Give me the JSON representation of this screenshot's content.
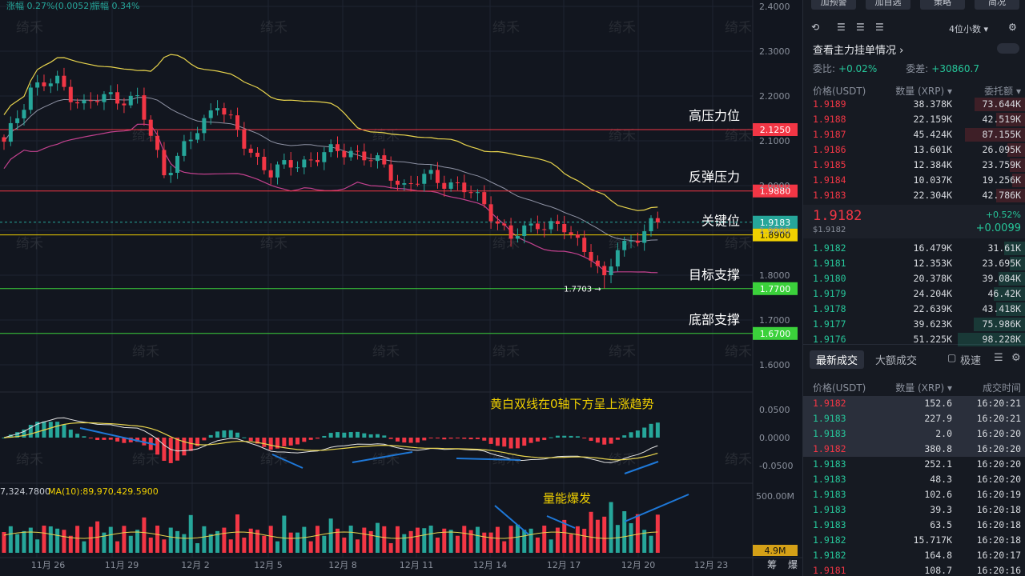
{
  "chart_data": {
    "type": "candlestick",
    "header": {
      "change_label": "涨幅",
      "change_value": "0.27%(0.0052)",
      "amplitude_label": "振幅",
      "amplitude_value": "0.34%"
    },
    "watermark": "绮禾",
    "price_axis": {
      "ylim": [
        1.55,
        2.42
      ],
      "ticks": [
        "2.4000",
        "2.3000",
        "2.2000",
        "2.1000",
        "2.0000",
        "1.9000",
        "1.8000",
        "1.7000",
        "1.6000"
      ]
    },
    "macd_axis": {
      "ticks": [
        "0.0500",
        "0.0000",
        "-0.0500"
      ]
    },
    "volume_axis": {
      "ticks": [
        "500.00M"
      ],
      "current": "4.9M",
      "ma_label": "MA(10):89,970,429.5900",
      "vol_label": "7,324.7800"
    },
    "x_ticks": [
      "11月 26",
      "11月 29",
      "12月 2",
      "12月 5",
      "12月 8",
      "12月 11",
      "12月 14",
      "12月 17",
      "12月 20",
      "12月 23"
    ],
    "x_axis_right": [
      "筹",
      "爆"
    ],
    "levels": [
      {
        "name": "高压力位",
        "value": "2.1250",
        "price": 2.125,
        "color": "#f23645"
      },
      {
        "name": "反弹压力",
        "value": "1.9880",
        "price": 1.988,
        "color": "#f23645"
      },
      {
        "name": "关键位",
        "value": "1.8900",
        "price": 1.89,
        "color": "#f0d000"
      },
      {
        "name": "目标支撑",
        "value": "1.7700",
        "price": 1.77,
        "color": "#3bd13b"
      },
      {
        "name": "底部支撑",
        "value": "1.6700",
        "price": 1.67,
        "color": "#3bd13b"
      }
    ],
    "current_price": {
      "value": "1.9183",
      "price": 1.9183
    },
    "low_marker": {
      "value": "1.7703",
      "price": 1.7703
    },
    "annotations": {
      "macd": "黄白双线在0轴下方呈上涨趋势",
      "volume": "量能爆发"
    },
    "series_keypoints": [
      [
        0,
        2.09
      ],
      [
        4,
        2.22
      ],
      [
        8,
        2.23
      ],
      [
        12,
        2.18
      ],
      [
        16,
        2.2
      ],
      [
        20,
        2.19
      ],
      [
        24,
        2.03
      ],
      [
        28,
        2.1
      ],
      [
        32,
        2.19
      ],
      [
        36,
        2.09
      ],
      [
        40,
        2.03
      ],
      [
        44,
        2.05
      ],
      [
        48,
        2.07
      ],
      [
        52,
        2.08
      ],
      [
        56,
        2.05
      ],
      [
        60,
        2.0
      ],
      [
        64,
        2.02
      ],
      [
        68,
        2.0
      ],
      [
        72,
        1.96
      ],
      [
        76,
        1.88
      ],
      [
        80,
        1.92
      ],
      [
        84,
        1.9
      ],
      [
        88,
        1.85
      ],
      [
        90,
        1.78
      ],
      [
        92,
        1.86
      ],
      [
        96,
        1.9
      ],
      [
        98,
        1.918
      ]
    ]
  },
  "right_panel": {
    "top_buttons": [
      "加预警",
      "加自选",
      "策略",
      "简况"
    ],
    "precision": "4位小数",
    "title": "查看主力挂单情况",
    "ratio_label": "委比:",
    "ratio_value": "+0.02%",
    "diff_label": "委差:",
    "diff_value": "+30860.7",
    "book_headers": [
      "价格(USDT)",
      "数量 (XRP)",
      "委托额"
    ],
    "asks": [
      {
        "price": "1.9189",
        "qty": "38.378K",
        "amt": "73.644K",
        "w": 0.75
      },
      {
        "price": "1.9188",
        "qty": "22.159K",
        "amt": "42.519K",
        "w": 0.43
      },
      {
        "price": "1.9187",
        "qty": "45.424K",
        "amt": "87.155K",
        "w": 0.89
      },
      {
        "price": "1.9186",
        "qty": "13.601K",
        "amt": "26.095K",
        "w": 0.27
      },
      {
        "price": "1.9185",
        "qty": "12.384K",
        "amt": "23.759K",
        "w": 0.24
      },
      {
        "price": "1.9184",
        "qty": "10.037K",
        "amt": "19.256K",
        "w": 0.2
      },
      {
        "price": "1.9183",
        "qty": "22.304K",
        "amt": "42.786K",
        "w": 0.44
      }
    ],
    "last_price": "1.9182",
    "last_usd": "$1.9182",
    "change_pct": "+0.52%",
    "change_abs": "+0.0099",
    "bids": [
      {
        "price": "1.9182",
        "qty": "16.479K",
        "amt": "31.61K",
        "w": 0.32
      },
      {
        "price": "1.9181",
        "qty": "12.353K",
        "amt": "23.695K",
        "w": 0.24
      },
      {
        "price": "1.9180",
        "qty": "20.378K",
        "amt": "39.084K",
        "w": 0.4
      },
      {
        "price": "1.9179",
        "qty": "24.204K",
        "amt": "46.42K",
        "w": 0.47
      },
      {
        "price": "1.9178",
        "qty": "22.639K",
        "amt": "43.418K",
        "w": 0.44
      },
      {
        "price": "1.9177",
        "qty": "39.623K",
        "amt": "75.986K",
        "w": 0.77
      },
      {
        "price": "1.9176",
        "qty": "51.225K",
        "amt": "98.228K",
        "w": 1.0
      }
    ],
    "trade_tabs": [
      "最新成交",
      "大额成交"
    ],
    "trade_mode": "极速",
    "trade_headers": [
      "价格(USDT)",
      "数量 (XRP)",
      "成交时间"
    ],
    "trades": [
      {
        "price": "1.9182",
        "qty": "152.6",
        "time": "16:20:21",
        "side": "sell",
        "hl": true
      },
      {
        "price": "1.9183",
        "qty": "227.9",
        "time": "16:20:21",
        "side": "buy",
        "hl": true
      },
      {
        "price": "1.9183",
        "qty": "2.0",
        "time": "16:20:20",
        "side": "buy",
        "hl": true
      },
      {
        "price": "1.9182",
        "qty": "380.8",
        "time": "16:20:20",
        "side": "sell",
        "hl": true
      },
      {
        "price": "1.9183",
        "qty": "252.1",
        "time": "16:20:20",
        "side": "buy",
        "hl": false
      },
      {
        "price": "1.9183",
        "qty": "48.3",
        "time": "16:20:20",
        "side": "buy",
        "hl": false
      },
      {
        "price": "1.9183",
        "qty": "102.6",
        "time": "16:20:19",
        "side": "buy",
        "hl": false
      },
      {
        "price": "1.9183",
        "qty": "39.3",
        "time": "16:20:18",
        "side": "buy",
        "hl": false
      },
      {
        "price": "1.9183",
        "qty": "63.5",
        "time": "16:20:18",
        "side": "buy",
        "hl": false
      },
      {
        "price": "1.9182",
        "qty": "15.717K",
        "time": "16:20:18",
        "side": "buy",
        "hl": false
      },
      {
        "price": "1.9182",
        "qty": "164.8",
        "time": "16:20:17",
        "side": "buy",
        "hl": false
      },
      {
        "price": "1.9181",
        "qty": "108.7",
        "time": "16:20:16",
        "side": "sell",
        "hl": false
      }
    ],
    "colors": {
      "up": "#26c69a",
      "down": "#f23645"
    }
  }
}
